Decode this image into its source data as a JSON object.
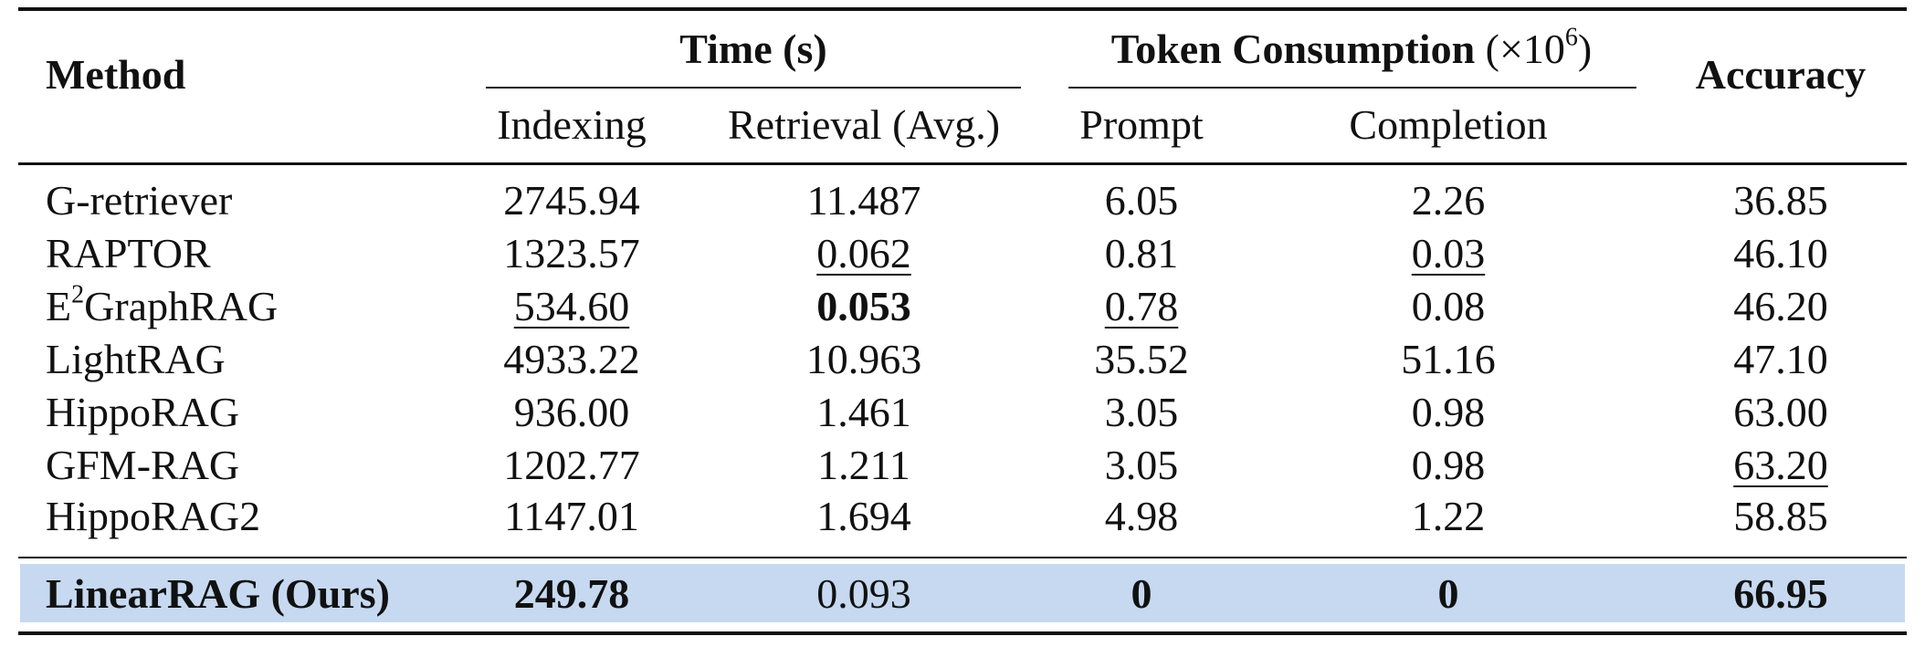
{
  "header": {
    "method": "Method",
    "time_group": "Time (s)",
    "token_group_main": "Token Consumption",
    "token_group_unit_prefix": "(×10",
    "token_group_unit_exp": "6",
    "token_group_unit_suffix": ")",
    "accuracy": "Accuracy",
    "indexing": "Indexing",
    "retrieval": "Retrieval (Avg.)",
    "prompt": "Prompt",
    "completion": "Completion"
  },
  "rows": [
    {
      "method": "G-retriever",
      "indexing": "2745.94",
      "retrieval": "11.487",
      "prompt": "6.05",
      "completion": "2.26",
      "accuracy": "36.85"
    },
    {
      "method": "RAPTOR",
      "indexing": "1323.57",
      "retrieval": "0.062",
      "prompt": "0.81",
      "completion": "0.03",
      "accuracy": "46.10"
    },
    {
      "method_base": "E",
      "method_sup": "2",
      "method_rest": "GraphRAG",
      "indexing": "534.60",
      "retrieval": "0.053",
      "prompt": "0.78",
      "completion": "0.08",
      "accuracy": "46.20"
    },
    {
      "method": "LightRAG",
      "indexing": "4933.22",
      "retrieval": "10.963",
      "prompt": "35.52",
      "completion": "51.16",
      "accuracy": "47.10"
    },
    {
      "method": "HippoRAG",
      "indexing": "936.00",
      "retrieval": "1.461",
      "prompt": "3.05",
      "completion": "0.98",
      "accuracy": "63.00"
    },
    {
      "method": "GFM-RAG",
      "indexing": "1202.77",
      "retrieval": "1.211",
      "prompt": "3.05",
      "completion": "0.98",
      "accuracy": "63.20"
    },
    {
      "method": "HippoRAG2",
      "indexing": "1147.01",
      "retrieval": "1.694",
      "prompt": "4.98",
      "completion": "1.22",
      "accuracy": "58.85"
    }
  ],
  "ours": {
    "method": "LinearRAG (Ours)",
    "indexing": "249.78",
    "retrieval": "0.093",
    "prompt": "0",
    "completion": "0",
    "accuracy": "66.95"
  },
  "colors": {
    "highlight_row": "#c6d9f1"
  }
}
